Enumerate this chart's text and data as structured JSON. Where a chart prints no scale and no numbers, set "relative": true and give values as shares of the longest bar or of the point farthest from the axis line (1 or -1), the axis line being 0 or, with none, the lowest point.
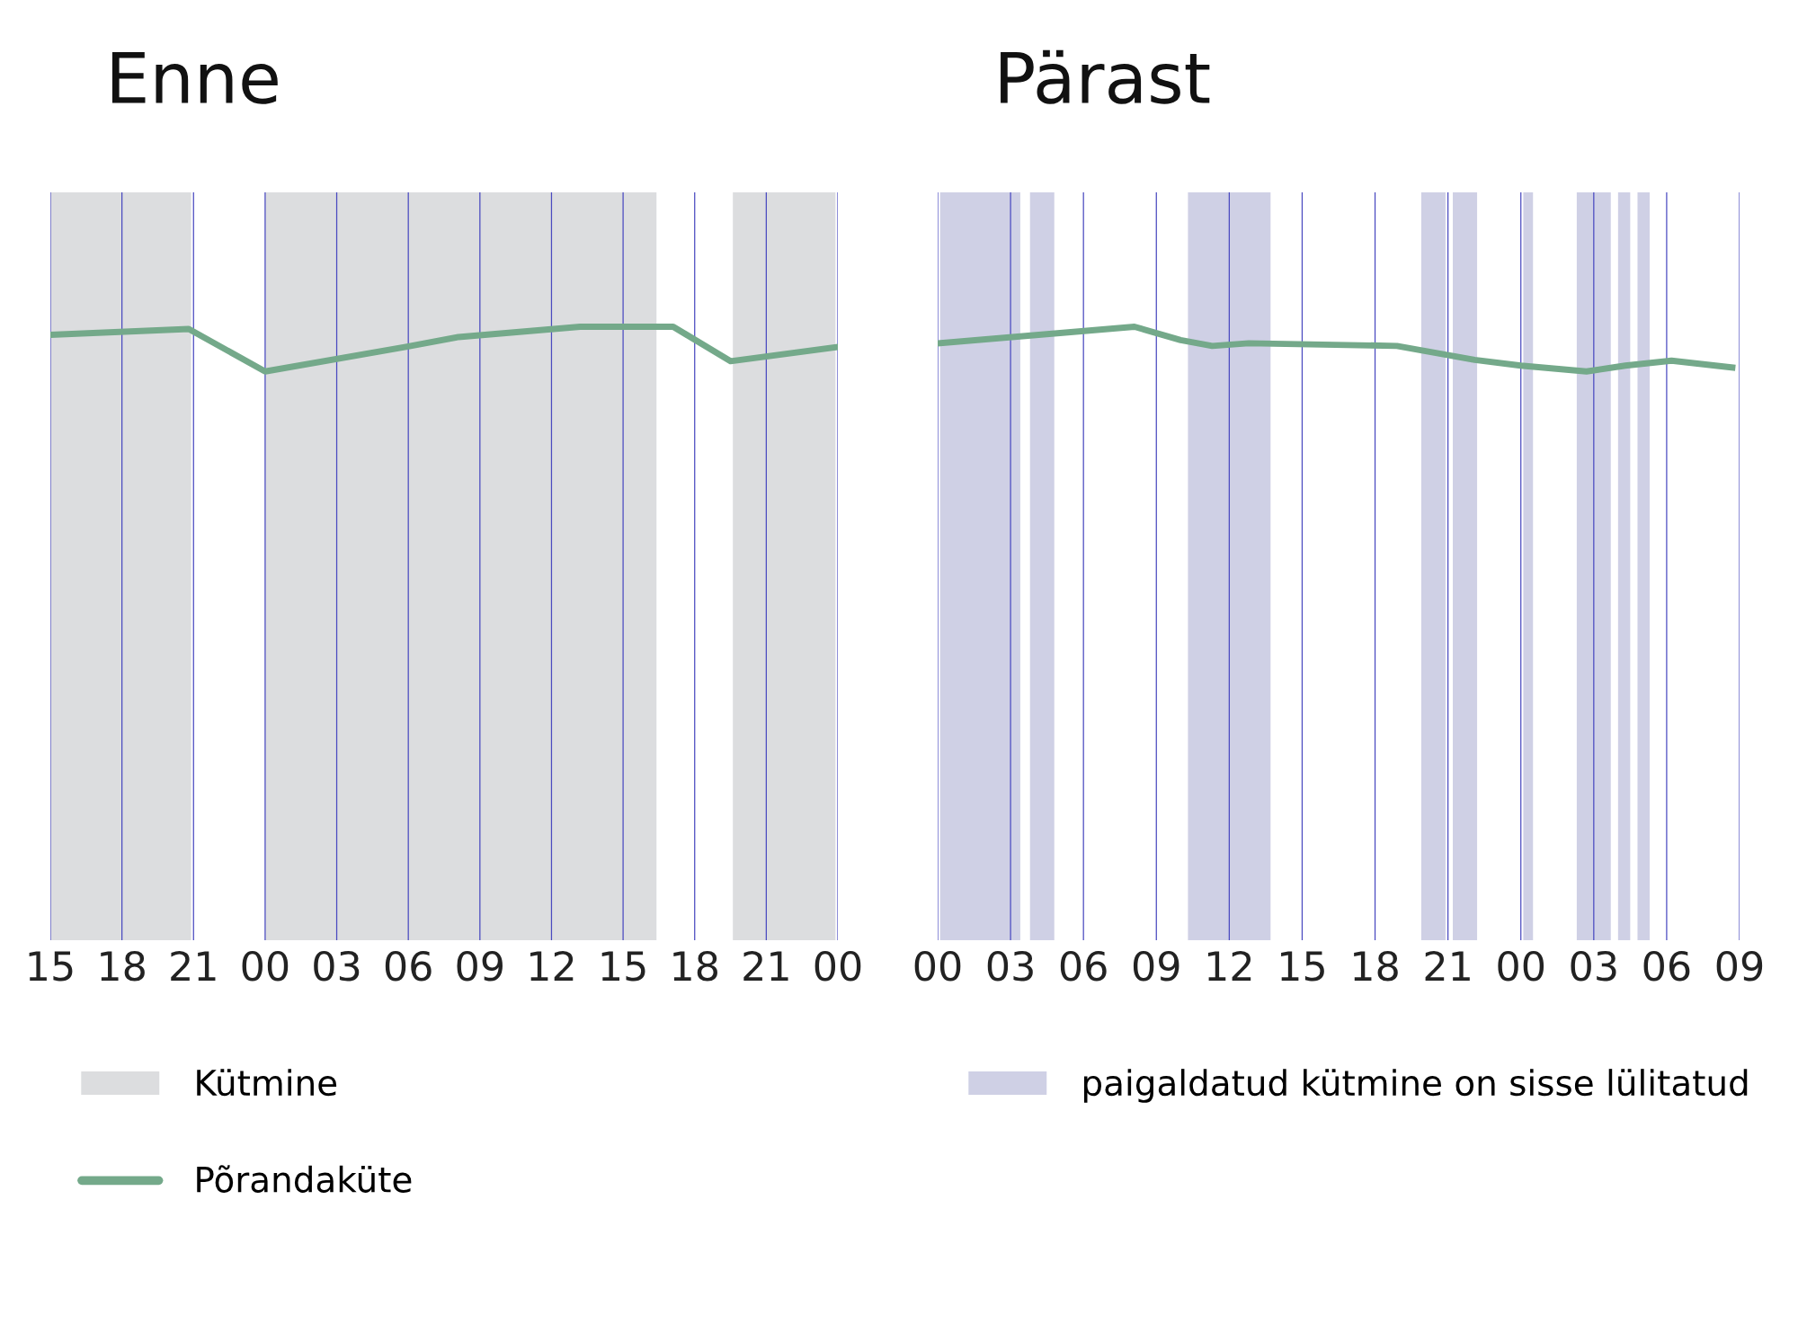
{
  "chart_data": [
    {
      "type": "line",
      "title": "Enne",
      "relative": true,
      "xlim": [
        15,
        48
      ],
      "xticks": [
        {
          "value": 15,
          "label": "15"
        },
        18,
        21,
        {
          "value": 24,
          "label": "00"
        },
        {
          "value": 27,
          "label": "03"
        },
        {
          "value": 30,
          "label": "06"
        },
        {
          "value": 33,
          "label": "09"
        },
        {
          "value": 36,
          "label": "12"
        },
        {
          "value": 39,
          "label": "15"
        },
        {
          "value": 42,
          "label": "18"
        },
        {
          "value": 45,
          "label": "21"
        },
        {
          "value": 48,
          "label": "00"
        }
      ],
      "grid": "x",
      "legend": "bottom",
      "series": [
        {
          "name": "Põrandaküte",
          "color": "#74a98a",
          "x": [
            15,
            20.8,
            24,
            29.9,
            32.1,
            37.2,
            41.1,
            43.5,
            48
          ],
          "values": [
            0.82,
            0.95,
            0,
            0.55,
            0.77,
            1,
            1,
            0.23,
            0.55
          ]
        }
      ],
      "bands": [
        {
          "axis": "x",
          "from": 15,
          "to": 20.9,
          "label": "Kütmine",
          "color": "#dcdddf"
        },
        {
          "axis": "x",
          "from": 24,
          "to": 40.4,
          "color": "#dcdddf"
        },
        {
          "axis": "x",
          "from": 43.6,
          "to": 47.9,
          "color": "#dcdddf"
        }
      ]
    },
    {
      "type": "line",
      "title": "Pärast",
      "relative": true,
      "xlim": [
        0,
        33
      ],
      "xticks": [
        {
          "value": 0,
          "label": "00"
        },
        {
          "value": 3,
          "label": "03"
        },
        {
          "value": 6,
          "label": "06"
        },
        {
          "value": 9,
          "label": "09"
        },
        12,
        15,
        18,
        21,
        {
          "value": 24,
          "label": "00"
        },
        {
          "value": 27,
          "label": "03"
        },
        {
          "value": 30,
          "label": "06"
        },
        {
          "value": 33,
          "label": "09"
        }
      ],
      "grid": "x",
      "legend": "bottom",
      "series": [
        {
          "color": "#74a98a",
          "x": [
            0,
            8.1,
            10.0,
            11.3,
            12.8,
            18.9,
            22.1,
            24.0,
            26.7,
            28.3,
            30.2,
            32.7
          ],
          "values": [
            0.63,
            1,
            0.7,
            0.57,
            0.63,
            0.57,
            0.26,
            0.13,
            0,
            0.13,
            0.24,
            0.09
          ]
        }
      ],
      "bands": [
        {
          "axis": "x",
          "from": 0.1,
          "to": 3.4,
          "label": "paigaldatud kütmine on sisse lülitatud",
          "color": "#cfd0e5"
        },
        {
          "axis": "x",
          "from": 3.8,
          "to": 4.8,
          "color": "#cfd0e5"
        },
        {
          "axis": "x",
          "from": 10.3,
          "to": 13.7,
          "color": "#cfd0e5"
        },
        {
          "axis": "x",
          "from": 19.9,
          "to": 20.9,
          "color": "#cfd0e5"
        },
        {
          "axis": "x",
          "from": 21.2,
          "to": 22.2,
          "color": "#cfd0e5"
        },
        {
          "axis": "x",
          "from": 24.1,
          "to": 24.5,
          "color": "#cfd0e5"
        },
        {
          "axis": "x",
          "from": 26.3,
          "to": 27.7,
          "color": "#cfd0e5"
        },
        {
          "axis": "x",
          "from": 28.0,
          "to": 28.5,
          "color": "#cfd0e5"
        },
        {
          "axis": "x",
          "from": 28.8,
          "to": 29.3,
          "color": "#cfd0e5"
        }
      ]
    }
  ]
}
